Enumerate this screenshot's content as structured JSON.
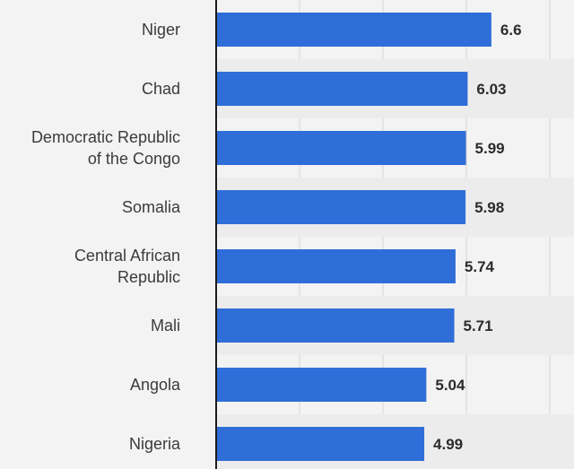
{
  "chart_data": {
    "type": "bar",
    "orientation": "horizontal",
    "categories": [
      [
        "Niger"
      ],
      [
        "Chad"
      ],
      [
        "Democratic Republic",
        "of the Congo"
      ],
      [
        "Somalia"
      ],
      [
        "Central African",
        "Republic"
      ],
      [
        "Mali"
      ],
      [
        "Angola"
      ],
      [
        "Nigeria"
      ]
    ],
    "values": [
      6.6,
      6.03,
      5.99,
      5.98,
      5.74,
      5.71,
      5.04,
      4.99
    ],
    "value_labels": [
      "6.6",
      "6.03",
      "5.99",
      "5.98",
      "5.74",
      "5.71",
      "5.04",
      "4.99"
    ],
    "xlim": [
      0,
      8
    ],
    "grid": true,
    "bar_color": "#2f6ed8",
    "title": "",
    "xlabel": "",
    "ylabel": ""
  }
}
